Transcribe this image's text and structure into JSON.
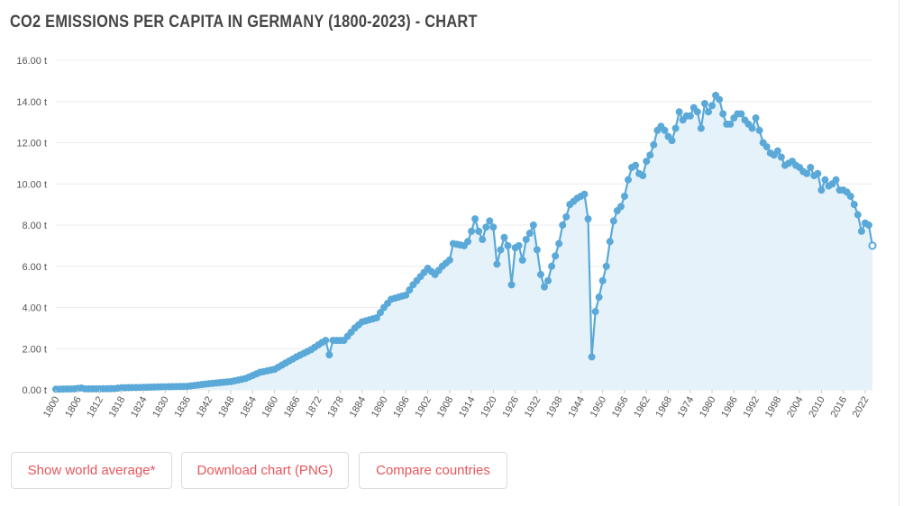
{
  "title": "CO2 Emissions per capita in Germany (1800-2023) - Chart",
  "buttons": {
    "world_average": "Show world average*",
    "download": "Download chart (PNG)",
    "compare": "Compare countries"
  },
  "colors": {
    "line": "#5aa9d8",
    "fill": "#e6f2fa",
    "grid": "#ececec",
    "button_text": "#e8555b"
  },
  "chart_data": {
    "type": "area",
    "title": "CO2 Emissions per capita in Germany (1800-2023) - Chart",
    "xlabel": "",
    "ylabel": "",
    "ylim": [
      0,
      16
    ],
    "xlim": [
      1800,
      2023
    ],
    "y_ticks": [
      0,
      2,
      4,
      6,
      8,
      10,
      12,
      14,
      16
    ],
    "y_tick_labels": [
      "0.00 t",
      "2.00 t",
      "4.00 t",
      "6.00 t",
      "8.00 t",
      "10.00 t",
      "12.00 t",
      "14.00 t",
      "16.00 t"
    ],
    "x_tick_labels": [
      "1800",
      "1806",
      "1812",
      "1818",
      "1824",
      "1830",
      "1836",
      "1842",
      "1848",
      "1854",
      "1860",
      "1866",
      "1872",
      "1878",
      "1884",
      "1890",
      "1896",
      "1902",
      "1908",
      "1914",
      "1920",
      "1926",
      "1932",
      "1938",
      "1944",
      "1950",
      "1956",
      "1962",
      "1968",
      "1974",
      "1980",
      "1986",
      "1992",
      "1998",
      "2004",
      "2010",
      "2016",
      "2022"
    ],
    "grid": true,
    "series": [
      {
        "name": "CO2 emissions per capita",
        "unit": "t",
        "keyframes": [
          [
            1800,
            0.03
          ],
          [
            1805,
            0.05
          ],
          [
            1807,
            0.09
          ],
          [
            1808,
            0.05
          ],
          [
            1812,
            0.05
          ],
          [
            1816,
            0.06
          ],
          [
            1818,
            0.1
          ],
          [
            1824,
            0.12
          ],
          [
            1830,
            0.15
          ],
          [
            1836,
            0.17
          ],
          [
            1842,
            0.3
          ],
          [
            1848,
            0.4
          ],
          [
            1852,
            0.55
          ],
          [
            1856,
            0.85
          ],
          [
            1860,
            1.0
          ],
          [
            1864,
            1.4
          ],
          [
            1866,
            1.6
          ],
          [
            1870,
            1.95
          ],
          [
            1873,
            2.3
          ],
          [
            1874,
            2.4
          ],
          [
            1875,
            1.7
          ],
          [
            1876,
            2.4
          ],
          [
            1879,
            2.4
          ],
          [
            1882,
            3.0
          ],
          [
            1884,
            3.3
          ],
          [
            1888,
            3.5
          ],
          [
            1890,
            4.0
          ],
          [
            1892,
            4.4
          ],
          [
            1896,
            4.6
          ],
          [
            1898,
            5.1
          ],
          [
            1900,
            5.5
          ],
          [
            1902,
            5.9
          ],
          [
            1904,
            5.6
          ],
          [
            1906,
            6.0
          ],
          [
            1908,
            6.3
          ],
          [
            1909,
            7.1
          ],
          [
            1912,
            7.0
          ],
          [
            1913,
            7.2
          ],
          [
            1914,
            7.7
          ],
          [
            1915,
            8.3
          ],
          [
            1916,
            7.7
          ],
          [
            1917,
            7.3
          ],
          [
            1918,
            7.9
          ],
          [
            1919,
            8.2
          ],
          [
            1920,
            7.9
          ],
          [
            1921,
            6.1
          ],
          [
            1922,
            6.8
          ],
          [
            1923,
            7.4
          ],
          [
            1924,
            7.0
          ],
          [
            1925,
            5.1
          ],
          [
            1926,
            6.9
          ],
          [
            1927,
            7.0
          ],
          [
            1928,
            6.3
          ],
          [
            1929,
            7.3
          ],
          [
            1930,
            7.6
          ],
          [
            1931,
            8.0
          ],
          [
            1932,
            6.8
          ],
          [
            1933,
            5.6
          ],
          [
            1934,
            5.0
          ],
          [
            1935,
            5.3
          ],
          [
            1936,
            6.0
          ],
          [
            1937,
            6.5
          ],
          [
            1938,
            7.1
          ],
          [
            1939,
            8.0
          ],
          [
            1940,
            8.4
          ],
          [
            1941,
            9.0
          ],
          [
            1943,
            9.3
          ],
          [
            1945,
            9.5
          ],
          [
            1946,
            8.3
          ],
          [
            1947,
            1.6
          ],
          [
            1948,
            3.8
          ],
          [
            1949,
            4.5
          ],
          [
            1950,
            5.3
          ],
          [
            1951,
            6.0
          ],
          [
            1952,
            7.2
          ],
          [
            1953,
            8.2
          ],
          [
            1954,
            8.7
          ],
          [
            1955,
            8.9
          ],
          [
            1956,
            9.4
          ],
          [
            1957,
            10.2
          ],
          [
            1958,
            10.8
          ],
          [
            1959,
            10.9
          ],
          [
            1960,
            10.5
          ],
          [
            1961,
            10.4
          ],
          [
            1962,
            11.1
          ],
          [
            1963,
            11.4
          ],
          [
            1964,
            11.9
          ],
          [
            1965,
            12.6
          ],
          [
            1966,
            12.8
          ],
          [
            1967,
            12.6
          ],
          [
            1968,
            12.3
          ],
          [
            1969,
            12.1
          ],
          [
            1970,
            12.7
          ],
          [
            1971,
            13.5
          ],
          [
            1972,
            13.1
          ],
          [
            1973,
            13.3
          ],
          [
            1974,
            13.3
          ],
          [
            1975,
            13.7
          ],
          [
            1976,
            13.5
          ],
          [
            1977,
            12.7
          ],
          [
            1978,
            13.9
          ],
          [
            1979,
            13.5
          ],
          [
            1980,
            13.8
          ],
          [
            1981,
            14.3
          ],
          [
            1982,
            14.1
          ],
          [
            1983,
            13.4
          ],
          [
            1984,
            12.9
          ],
          [
            1985,
            12.9
          ],
          [
            1986,
            13.2
          ],
          [
            1987,
            13.4
          ],
          [
            1988,
            13.4
          ],
          [
            1989,
            13.1
          ],
          [
            1990,
            12.9
          ],
          [
            1991,
            12.7
          ],
          [
            1992,
            13.2
          ],
          [
            1993,
            12.6
          ],
          [
            1994,
            12.0
          ],
          [
            1995,
            11.8
          ],
          [
            1996,
            11.5
          ],
          [
            1997,
            11.4
          ],
          [
            1998,
            11.6
          ],
          [
            1999,
            11.3
          ],
          [
            2000,
            10.9
          ],
          [
            2001,
            11.0
          ],
          [
            2002,
            11.1
          ],
          [
            2003,
            10.9
          ],
          [
            2004,
            10.8
          ],
          [
            2005,
            10.6
          ],
          [
            2006,
            10.5
          ],
          [
            2007,
            10.8
          ],
          [
            2008,
            10.4
          ],
          [
            2009,
            10.5
          ],
          [
            2010,
            9.7
          ],
          [
            2011,
            10.2
          ],
          [
            2012,
            9.9
          ],
          [
            2013,
            10.0
          ],
          [
            2014,
            10.2
          ],
          [
            2015,
            9.7
          ],
          [
            2016,
            9.7
          ],
          [
            2017,
            9.6
          ],
          [
            2018,
            9.4
          ],
          [
            2019,
            9.0
          ],
          [
            2020,
            8.5
          ],
          [
            2021,
            7.7
          ],
          [
            2022,
            8.1
          ],
          [
            2023,
            8.0
          ],
          [
            2024,
            7.0
          ]
        ]
      }
    ]
  }
}
